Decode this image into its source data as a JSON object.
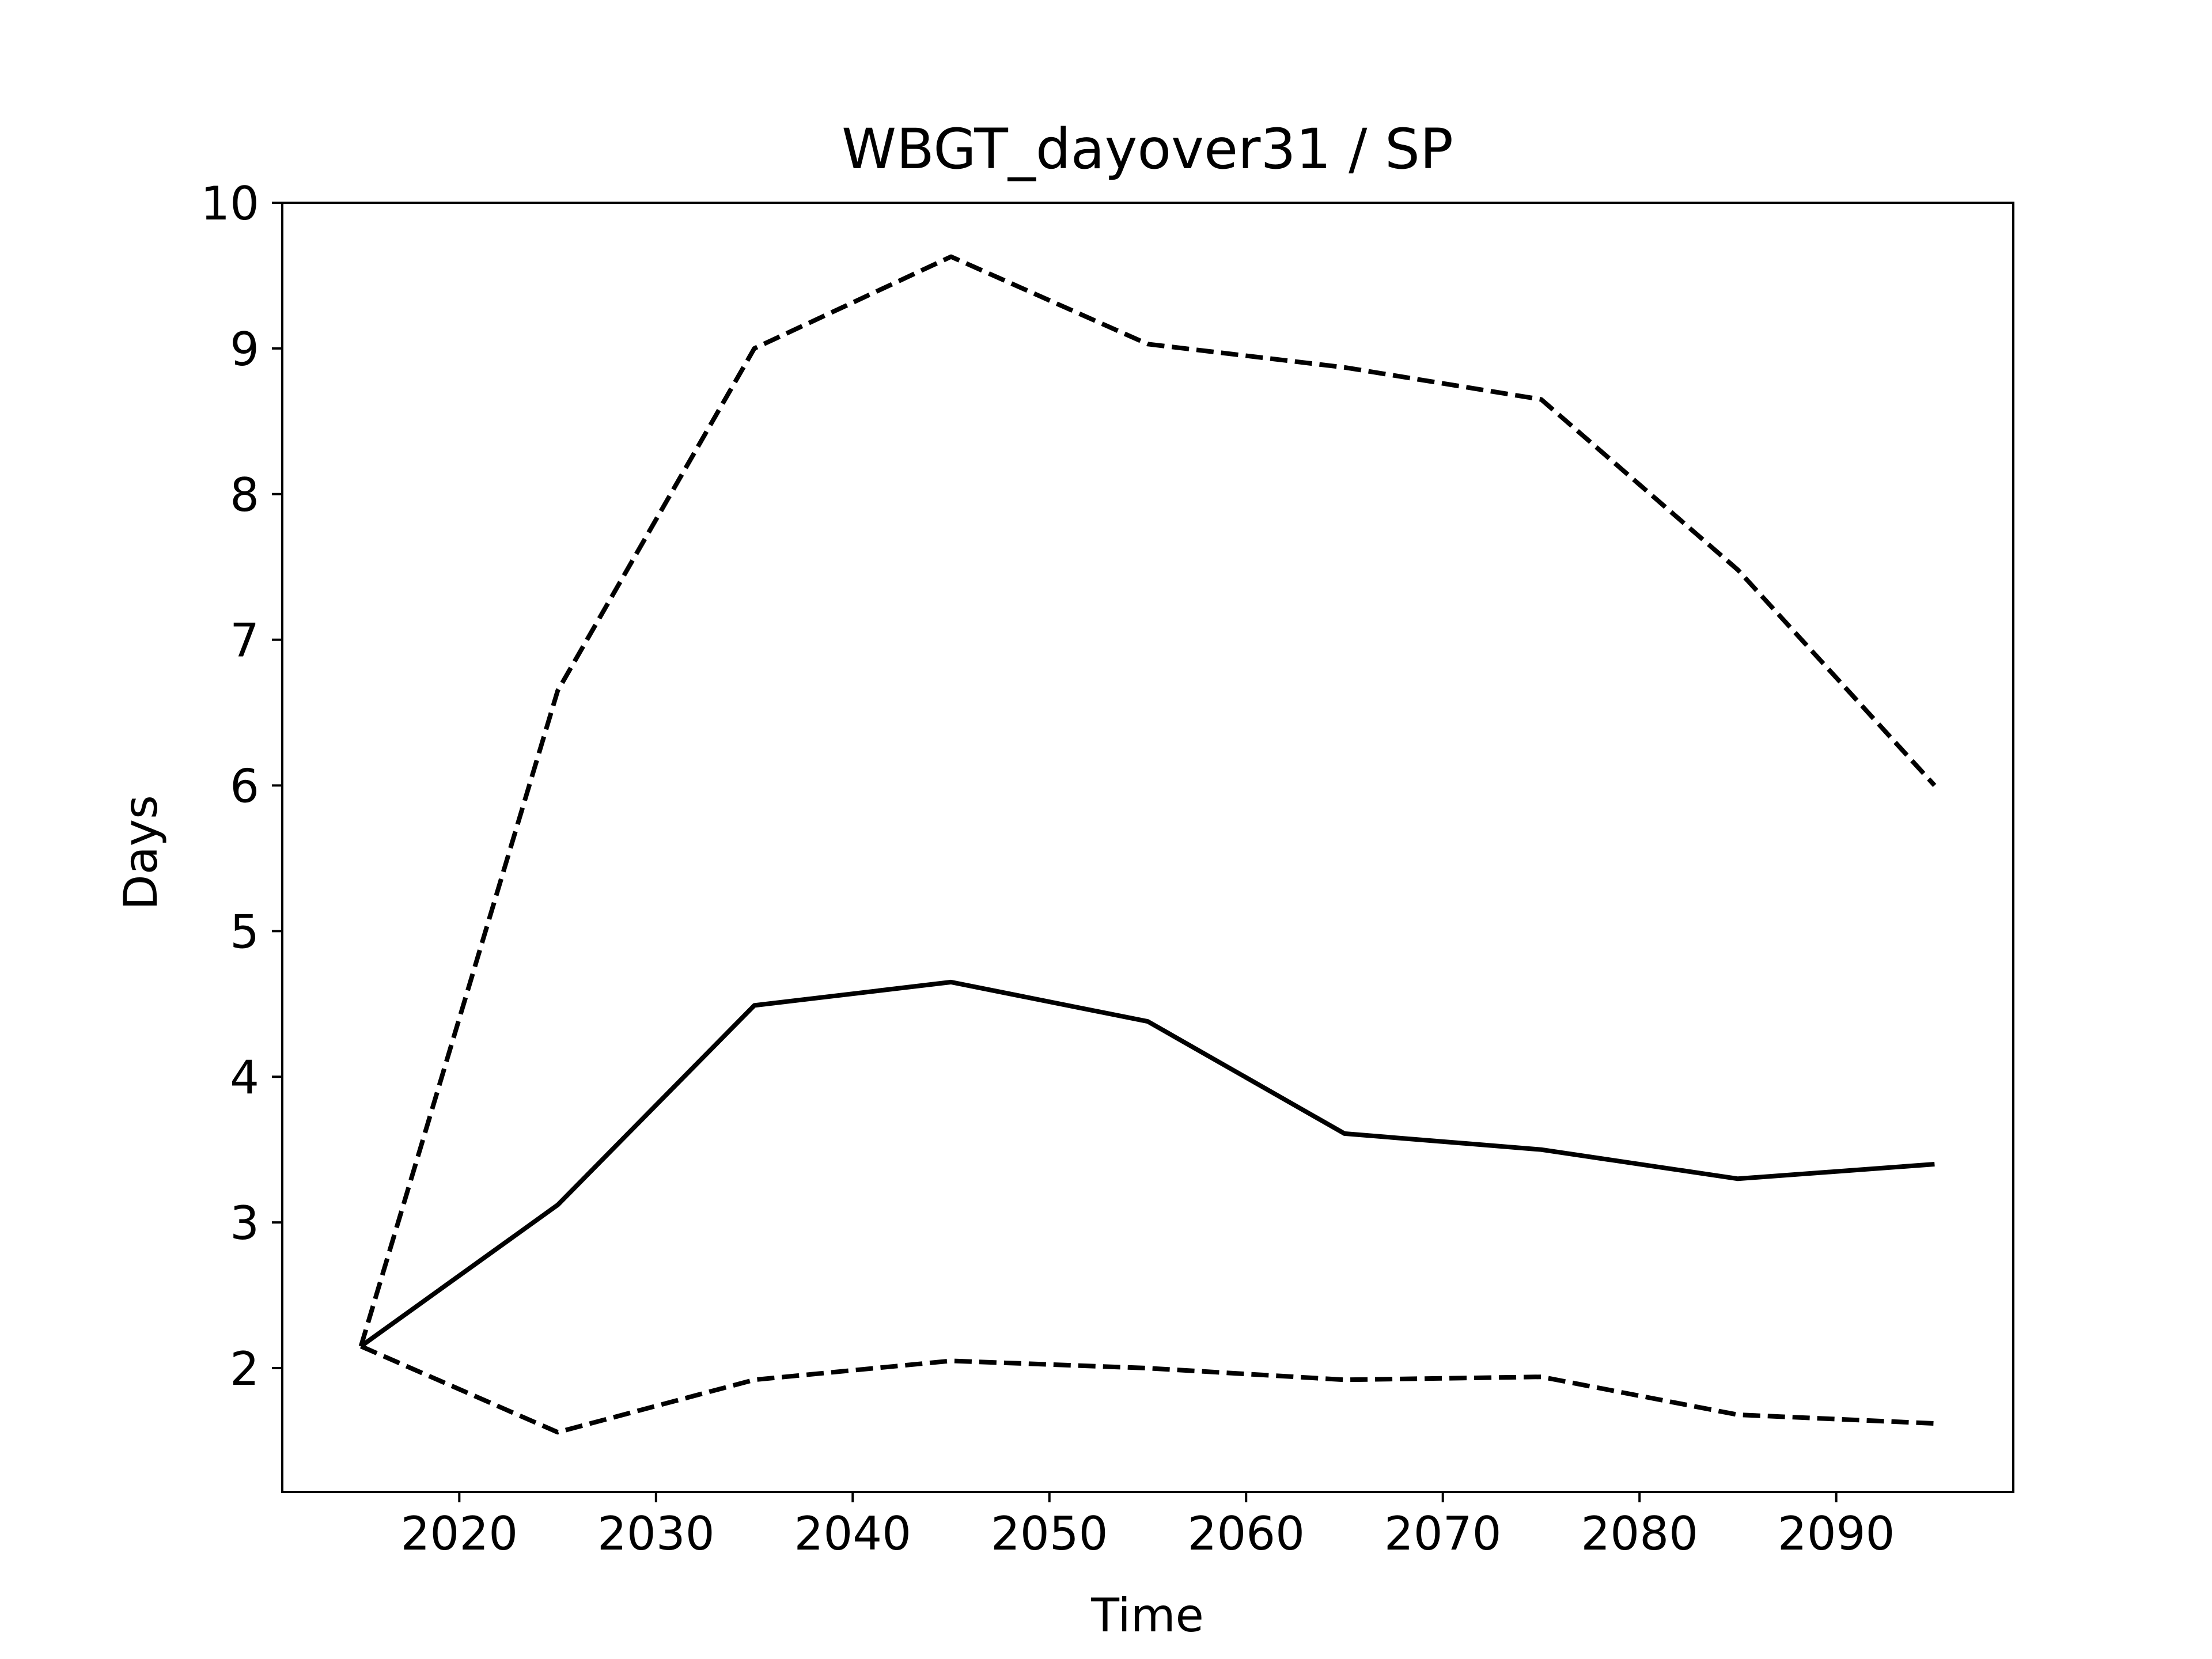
{
  "chart_data": {
    "type": "line",
    "title": "WBGT_dayover31 / SP",
    "xlabel": "Time",
    "ylabel": "Days",
    "xlim": [
      2011,
      2099
    ],
    "ylim": [
      1.15,
      10
    ],
    "xticks": [
      2020,
      2030,
      2040,
      2050,
      2060,
      2070,
      2080,
      2090
    ],
    "yticks": [
      2,
      3,
      4,
      5,
      6,
      7,
      8,
      9,
      10
    ],
    "grid": false,
    "legend": "none",
    "x": [
      2015,
      2025,
      2035,
      2045,
      2055,
      2065,
      2075,
      2085,
      2095
    ],
    "series": [
      {
        "style": "dashed",
        "color": "#000000",
        "values": [
          2.15,
          6.65,
          9.0,
          9.63,
          9.03,
          8.87,
          8.65,
          7.48,
          6.0
        ]
      },
      {
        "style": "solid",
        "color": "#000000",
        "values": [
          2.15,
          3.12,
          4.49,
          4.65,
          4.38,
          3.61,
          3.5,
          3.3,
          3.4
        ]
      },
      {
        "style": "dashed",
        "color": "#000000",
        "values": [
          2.15,
          1.56,
          1.92,
          2.05,
          2.0,
          1.92,
          1.94,
          1.68,
          1.62
        ]
      }
    ]
  }
}
